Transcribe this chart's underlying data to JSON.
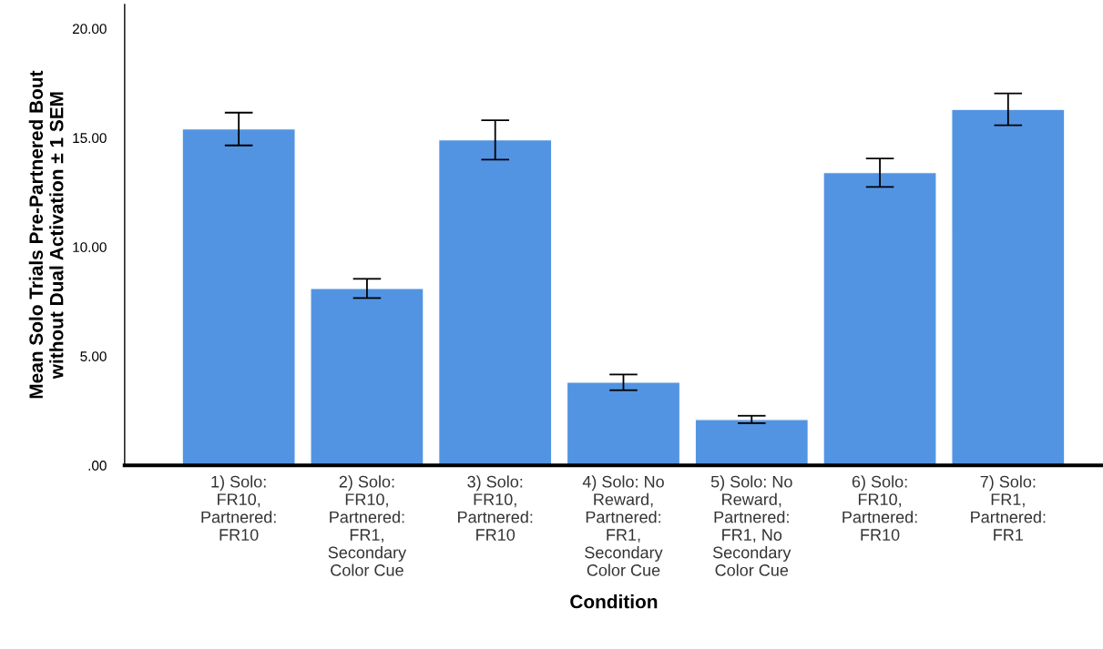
{
  "chart_data": {
    "type": "bar",
    "xlabel": "Condition",
    "ylabel": "Mean Solo Trials Pre-Partnered Bout\nwithout Dual Activation ± 1 SEM",
    "categories": [
      "1) Solo:\nFR10,\nPartnered:\nFR10",
      "2) Solo:\nFR10,\nPartnered:\nFR1,\nSecondary\nColor Cue",
      "3) Solo:\nFR10,\nPartnered:\nFR10",
      "4) Solo: No\nReward,\nPartnered:\nFR1,\nSecondary\nColor Cue",
      "5) Solo: No\nReward,\nPartnered:\nFR1, No\nSecondary\nColor Cue",
      "6) Solo:\nFR10,\nPartnered:\nFR10",
      "7) Solo:\nFR1,\nPartnered:\nFR1"
    ],
    "values": [
      15.4,
      8.1,
      14.9,
      3.8,
      2.1,
      13.4,
      16.3
    ],
    "errors": [
      0.75,
      0.44,
      0.9,
      0.36,
      0.17,
      0.65,
      0.73
    ],
    "color": "#5294e2",
    "ylim": [
      0,
      21.1
    ],
    "yticks": [
      {
        "value": 0,
        "label": ".00"
      },
      {
        "value": 5,
        "label": "5.00"
      },
      {
        "value": 10,
        "label": "10.00"
      },
      {
        "value": 15,
        "label": "15.00"
      },
      {
        "value": 20,
        "label": "20.00"
      }
    ],
    "grid": false
  }
}
